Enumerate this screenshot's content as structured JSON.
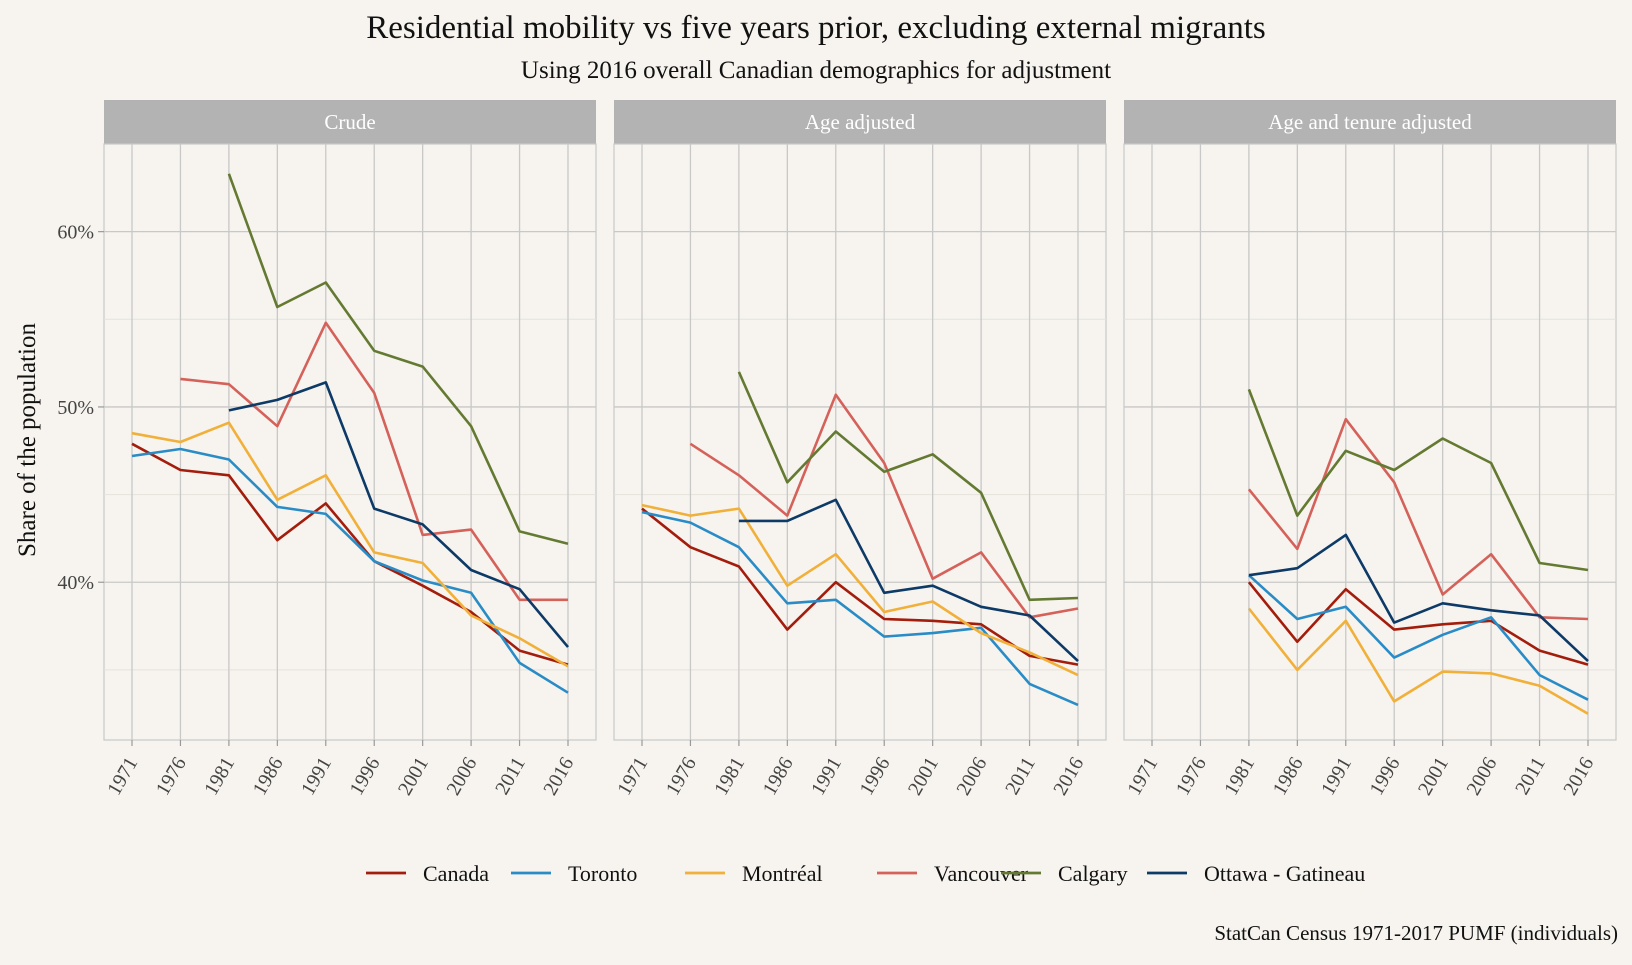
{
  "chart_data": {
    "type": "line",
    "title": "Residential mobility vs five years prior, excluding external migrants",
    "subtitle": "Using 2016 overall Canadian demographics for adjustment",
    "ylabel": "Share of the population",
    "xlabel": "",
    "caption": "StatCan Census 1971-2017 PUMF (individuals)",
    "x": [
      1971,
      1976,
      1981,
      1986,
      1991,
      1996,
      2001,
      2006,
      2011,
      2016
    ],
    "x_tick_labels": [
      "1971",
      "1976",
      "1981",
      "1986",
      "1991",
      "1996",
      "2001",
      "2006",
      "2011",
      "2016"
    ],
    "y_ticks": [
      40,
      50,
      60
    ],
    "y_tick_labels": [
      "40%",
      "50%",
      "60%"
    ],
    "y_minor_ticks": [
      35,
      45,
      55
    ],
    "ylim": [
      31,
      65
    ],
    "grid": true,
    "legend_position": "bottom",
    "series_styles": [
      {
        "name": "Canada",
        "color": "#a31d0c"
      },
      {
        "name": "Toronto",
        "color": "#2a8cc6"
      },
      {
        "name": "Montréal",
        "color": "#f0b03a"
      },
      {
        "name": "Vancouver",
        "color": "#d4625a"
      },
      {
        "name": "Calgary",
        "color": "#647a32"
      },
      {
        "name": "Ottawa - Gatineau",
        "color": "#0d3a66"
      }
    ],
    "panels": [
      {
        "name": "Crude",
        "series": [
          {
            "name": "Canada",
            "values": [
              47.9,
              46.4,
              46.1,
              42.4,
              44.5,
              41.2,
              39.8,
              38.3,
              36.1,
              35.3
            ]
          },
          {
            "name": "Toronto",
            "values": [
              47.2,
              47.6,
              47.0,
              44.3,
              43.9,
              41.2,
              40.1,
              39.4,
              35.4,
              33.7
            ]
          },
          {
            "name": "Montréal",
            "values": [
              48.5,
              48.0,
              49.1,
              44.7,
              46.1,
              41.7,
              41.1,
              38.1,
              36.8,
              35.2
            ]
          },
          {
            "name": "Vancouver",
            "values": [
              null,
              51.6,
              51.3,
              48.9,
              54.8,
              50.8,
              42.7,
              43.0,
              39.0,
              39.0
            ]
          },
          {
            "name": "Calgary",
            "values": [
              null,
              null,
              63.3,
              55.7,
              57.1,
              53.2,
              52.3,
              48.9,
              42.9,
              42.2
            ]
          },
          {
            "name": "Ottawa - Gatineau",
            "values": [
              null,
              null,
              49.8,
              50.4,
              51.4,
              44.2,
              43.3,
              40.7,
              39.6,
              36.3
            ]
          }
        ]
      },
      {
        "name": "Age adjusted",
        "series": [
          {
            "name": "Canada",
            "values": [
              44.2,
              42.0,
              40.9,
              37.3,
              40.0,
              37.9,
              37.8,
              37.6,
              35.8,
              35.3
            ]
          },
          {
            "name": "Toronto",
            "values": [
              44.0,
              43.4,
              42.0,
              38.8,
              39.0,
              36.9,
              37.1,
              37.4,
              34.2,
              33.0
            ]
          },
          {
            "name": "Montréal",
            "values": [
              44.4,
              43.8,
              44.2,
              39.8,
              41.6,
              38.3,
              38.9,
              37.1,
              36.0,
              34.7
            ]
          },
          {
            "name": "Vancouver",
            "values": [
              null,
              47.9,
              46.1,
              43.8,
              50.7,
              46.8,
              40.2,
              41.7,
              38.0,
              38.5
            ]
          },
          {
            "name": "Calgary",
            "values": [
              null,
              null,
              52.0,
              45.7,
              48.6,
              46.3,
              47.3,
              45.1,
              39.0,
              39.1
            ]
          },
          {
            "name": "Ottawa - Gatineau",
            "values": [
              null,
              null,
              43.5,
              43.5,
              44.7,
              39.4,
              39.8,
              38.6,
              38.1,
              35.5
            ]
          }
        ]
      },
      {
        "name": "Age and tenure adjusted",
        "series": [
          {
            "name": "Canada",
            "values": [
              null,
              null,
              40.0,
              36.6,
              39.6,
              37.3,
              37.6,
              37.8,
              36.1,
              35.3
            ]
          },
          {
            "name": "Toronto",
            "values": [
              null,
              null,
              40.4,
              37.9,
              38.6,
              35.7,
              37.0,
              38.0,
              34.7,
              33.3
            ]
          },
          {
            "name": "Montréal",
            "values": [
              null,
              null,
              38.5,
              35.0,
              37.8,
              33.2,
              34.9,
              34.8,
              34.1,
              32.5
            ]
          },
          {
            "name": "Vancouver",
            "values": [
              null,
              null,
              45.3,
              41.9,
              49.3,
              45.7,
              39.3,
              41.6,
              38.0,
              37.9
            ]
          },
          {
            "name": "Calgary",
            "values": [
              null,
              null,
              51.0,
              43.8,
              47.5,
              46.4,
              48.2,
              46.8,
              41.1,
              40.7
            ]
          },
          {
            "name": "Ottawa - Gatineau",
            "values": [
              null,
              null,
              40.4,
              40.8,
              42.7,
              37.7,
              38.8,
              38.4,
              38.1,
              35.5
            ]
          }
        ]
      }
    ]
  }
}
